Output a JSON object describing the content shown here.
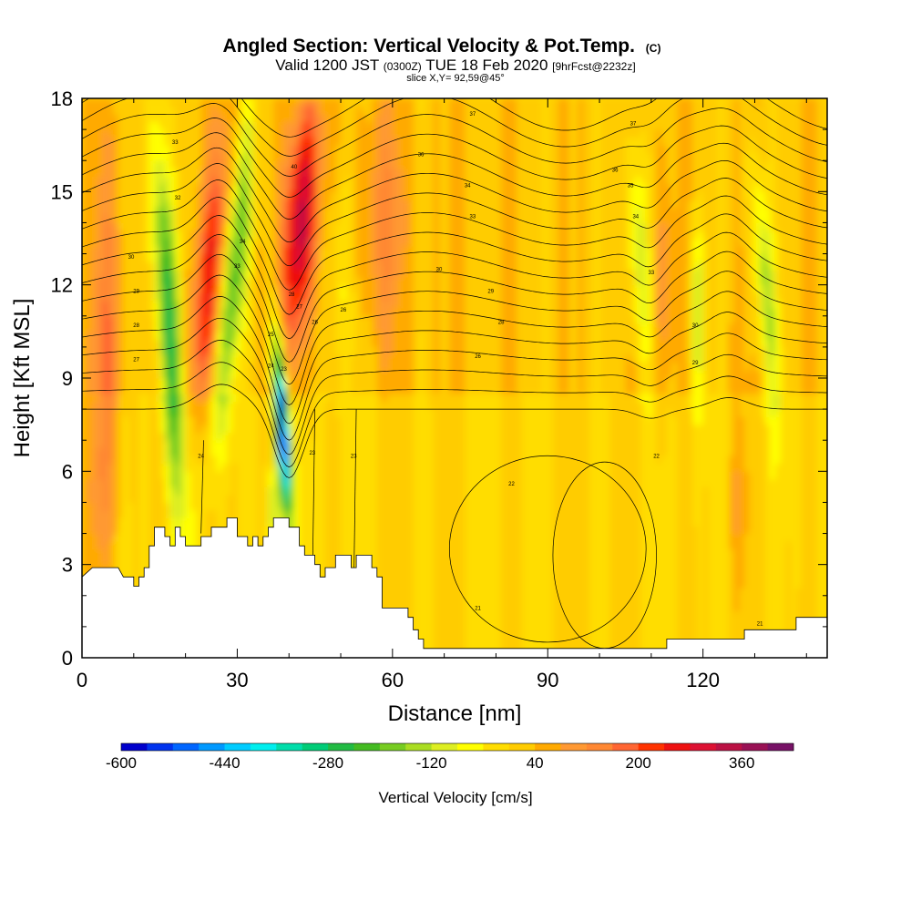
{
  "chart_data": {
    "type": "heatmap",
    "title": "Angled Section: Vertical Velocity & Pot.Temp.",
    "title_suffix": "(C)",
    "subtitle": {
      "prefix": "Valid 1200 JST",
      "utc": "(0300Z)",
      "date": "TUE 18 Feb 2020",
      "forecast": "[9hrFcst@2232z]"
    },
    "slice": "slice X,Y= 92,59@45°",
    "xlabel": "Distance [nm]",
    "ylabel": "Height [Kft MSL]",
    "xlim": [
      0,
      144
    ],
    "ylim": [
      0,
      18
    ],
    "x_ticks": [
      0,
      30,
      60,
      90,
      120
    ],
    "y_ticks": [
      0,
      3,
      6,
      9,
      12,
      15,
      18
    ],
    "colorbar": {
      "label": "Vertical Velocity [cm/s]",
      "min": -600,
      "max": 440,
      "step": 40,
      "tick_values": [
        -600,
        -440,
        -280,
        -120,
        40,
        200,
        360
      ],
      "colors": [
        "#0000cc",
        "#0033ee",
        "#0066ff",
        "#0099ff",
        "#00ccff",
        "#00eeee",
        "#00ddaa",
        "#00cc77",
        "#22bb44",
        "#44bb22",
        "#77cc22",
        "#aadd22",
        "#ddee22",
        "#ffff00",
        "#ffdd00",
        "#ffcc00",
        "#ffaa00",
        "#ff9933",
        "#ff8833",
        "#ff6633",
        "#ff3300",
        "#ee1111",
        "#dd1133",
        "#bb1144",
        "#991155",
        "#771166"
      ]
    },
    "series": [
      {
        "name": "Vertical Velocity",
        "units": "cm/s",
        "features": [
          {
            "x": 17,
            "z_range": [
              4.5,
              17
            ],
            "value": -280
          },
          {
            "x": 30,
            "z_range": [
              6,
              18
            ],
            "value": -240
          },
          {
            "x": 38,
            "z_range": [
              4.5,
              10
            ],
            "value": -560
          },
          {
            "x": 24,
            "z_range": [
              7,
              18
            ],
            "value": 180
          },
          {
            "x": 41,
            "z_range": [
              8,
              18
            ],
            "value": 300
          },
          {
            "x": 108,
            "z_range": [
              9,
              18
            ],
            "value": -140
          },
          {
            "x": 119,
            "z_range": [
              8,
              14
            ],
            "value": -160
          },
          {
            "x": 132,
            "z_range": [
              8,
              16
            ],
            "value": -160
          }
        ]
      },
      {
        "name": "Potential Temperature",
        "units": "C",
        "contour_labels": [
          {
            "x": 18,
            "y": 16.6,
            "text": "33"
          },
          {
            "x": 18.5,
            "y": 14.8,
            "text": "32"
          },
          {
            "x": 9.5,
            "y": 12.9,
            "text": "30"
          },
          {
            "x": 10.5,
            "y": 11.8,
            "text": "29"
          },
          {
            "x": 10.5,
            "y": 10.7,
            "text": "28"
          },
          {
            "x": 10.5,
            "y": 9.6,
            "text": "27"
          },
          {
            "x": 31,
            "y": 13.4,
            "text": "34"
          },
          {
            "x": 30,
            "y": 12.6,
            "text": "33"
          },
          {
            "x": 40.5,
            "y": 11.7,
            "text": "28"
          },
          {
            "x": 42,
            "y": 11.3,
            "text": "27"
          },
          {
            "x": 45,
            "y": 10.8,
            "text": "26"
          },
          {
            "x": 36.5,
            "y": 10.4,
            "text": "25"
          },
          {
            "x": 36.5,
            "y": 9.4,
            "text": "24"
          },
          {
            "x": 39,
            "y": 9.3,
            "text": "23"
          },
          {
            "x": 50.5,
            "y": 11.2,
            "text": "26"
          },
          {
            "x": 41,
            "y": 15.8,
            "text": "40"
          },
          {
            "x": 75.5,
            "y": 17.5,
            "text": "37"
          },
          {
            "x": 65.5,
            "y": 16.2,
            "text": "36"
          },
          {
            "x": 74.5,
            "y": 15.2,
            "text": "34"
          },
          {
            "x": 75.5,
            "y": 14.2,
            "text": "33"
          },
          {
            "x": 69,
            "y": 12.5,
            "text": "30"
          },
          {
            "x": 79,
            "y": 11.8,
            "text": "29"
          },
          {
            "x": 81,
            "y": 10.8,
            "text": "28"
          },
          {
            "x": 76.5,
            "y": 9.7,
            "text": "26"
          },
          {
            "x": 106.5,
            "y": 17.2,
            "text": "37"
          },
          {
            "x": 103,
            "y": 15.7,
            "text": "36"
          },
          {
            "x": 106,
            "y": 15.2,
            "text": "35"
          },
          {
            "x": 107,
            "y": 14.2,
            "text": "34"
          },
          {
            "x": 110,
            "y": 12.4,
            "text": "33"
          },
          {
            "x": 118.5,
            "y": 10.7,
            "text": "30"
          },
          {
            "x": 118.5,
            "y": 9.5,
            "text": "29"
          },
          {
            "x": 23,
            "y": 6.5,
            "text": "24"
          },
          {
            "x": 44.5,
            "y": 6.6,
            "text": "23"
          },
          {
            "x": 52.5,
            "y": 6.5,
            "text": "23"
          },
          {
            "x": 83,
            "y": 5.6,
            "text": "22"
          },
          {
            "x": 111,
            "y": 6.5,
            "text": "22"
          },
          {
            "x": 76.5,
            "y": 1.6,
            "text": "21"
          },
          {
            "x": 131,
            "y": 1.1,
            "text": "21"
          }
        ]
      }
    ],
    "terrain": [
      [
        0,
        2.6
      ],
      [
        2,
        2.9
      ],
      [
        7,
        2.9
      ],
      [
        8,
        2.6
      ],
      [
        10,
        2.6
      ],
      [
        10,
        2.3
      ],
      [
        11,
        2.3
      ],
      [
        11,
        2.6
      ],
      [
        12,
        2.6
      ],
      [
        12,
        2.9
      ],
      [
        13,
        2.9
      ],
      [
        13,
        3.6
      ],
      [
        14,
        3.6
      ],
      [
        14,
        4.2
      ],
      [
        16,
        4.2
      ],
      [
        16,
        3.9
      ],
      [
        17,
        3.9
      ],
      [
        17,
        3.6
      ],
      [
        18,
        3.6
      ],
      [
        18,
        4.2
      ],
      [
        19,
        4.2
      ],
      [
        19,
        3.9
      ],
      [
        20,
        3.9
      ],
      [
        20,
        3.6
      ],
      [
        23,
        3.6
      ],
      [
        23,
        3.9
      ],
      [
        25,
        3.9
      ],
      [
        25,
        4.2
      ],
      [
        28,
        4.2
      ],
      [
        28,
        4.5
      ],
      [
        30,
        4.5
      ],
      [
        30,
        3.9
      ],
      [
        32,
        3.9
      ],
      [
        32,
        3.6
      ],
      [
        33,
        3.6
      ],
      [
        33,
        3.9
      ],
      [
        34,
        3.9
      ],
      [
        34,
        3.6
      ],
      [
        35,
        3.6
      ],
      [
        35,
        3.9
      ],
      [
        36,
        3.9
      ],
      [
        36,
        4.2
      ],
      [
        37,
        4.2
      ],
      [
        37,
        4.5
      ],
      [
        40,
        4.5
      ],
      [
        40,
        4.2
      ],
      [
        42,
        4.2
      ],
      [
        42,
        3.6
      ],
      [
        43,
        3.6
      ],
      [
        43,
        3.3
      ],
      [
        45,
        3.3
      ],
      [
        45,
        3.0
      ],
      [
        46,
        3.0
      ],
      [
        46,
        2.6
      ],
      [
        47,
        2.6
      ],
      [
        47,
        2.9
      ],
      [
        49,
        2.9
      ],
      [
        49,
        3.3
      ],
      [
        52,
        3.3
      ],
      [
        52,
        2.9
      ],
      [
        53,
        2.9
      ],
      [
        53,
        3.3
      ],
      [
        56,
        3.3
      ],
      [
        56,
        2.9
      ],
      [
        57,
        2.9
      ],
      [
        57,
        2.6
      ],
      [
        58,
        2.6
      ],
      [
        58,
        1.6
      ],
      [
        63,
        1.6
      ],
      [
        63,
        1.3
      ],
      [
        64,
        1.3
      ],
      [
        64,
        0.9
      ],
      [
        65,
        0.9
      ],
      [
        65,
        0.6
      ],
      [
        66,
        0.6
      ],
      [
        66,
        0.3
      ],
      [
        113,
        0.3
      ],
      [
        113,
        0.6
      ],
      [
        128,
        0.6
      ],
      [
        128,
        0.9
      ],
      [
        138,
        0.9
      ],
      [
        138,
        1.3
      ],
      [
        144,
        1.3
      ]
    ]
  }
}
